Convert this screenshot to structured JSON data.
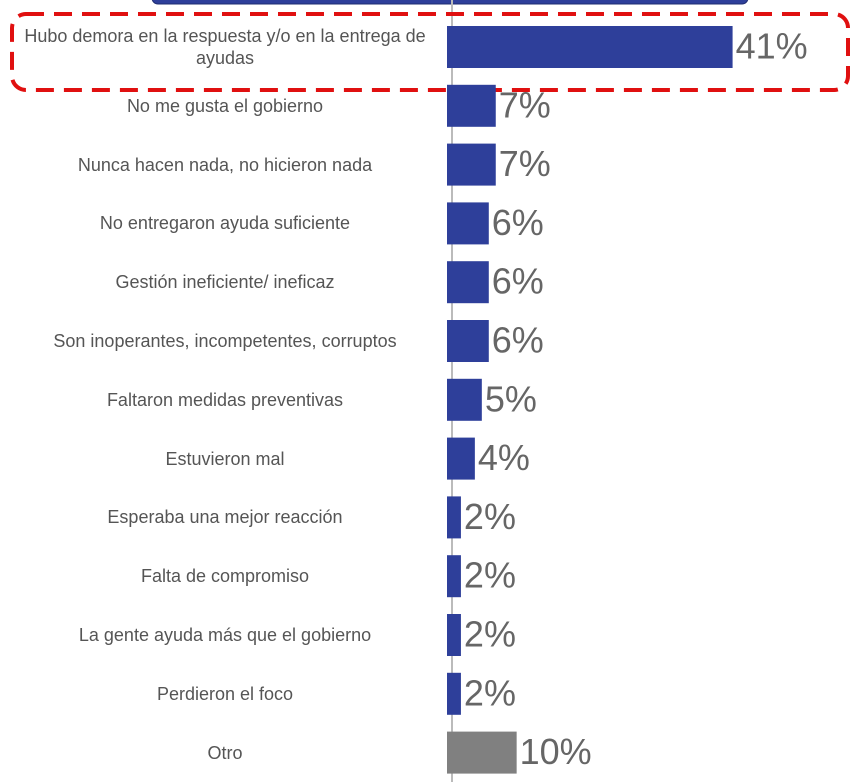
{
  "chart_data": {
    "type": "bar",
    "orientation": "horizontal",
    "categories": [
      "Hubo demora en la respuesta y/o en la entrega de ayudas",
      "No me gusta el gobierno",
      "Nunca hacen nada, no hicieron nada",
      "No entregaron ayuda suficiente",
      "Gestión ineficiente/ ineficaz",
      "Son inoperantes, incompetentes, corruptos",
      "Faltaron medidas preventivas",
      "Estuvieron mal",
      "Esperaba una mejor reacción",
      "Falta de compromiso",
      "La gente ayuda más que el gobierno",
      "Perdieron el foco",
      "Otro"
    ],
    "values": [
      41,
      7,
      7,
      6,
      6,
      6,
      5,
      4,
      2,
      2,
      2,
      2,
      10
    ],
    "value_labels": [
      "41%",
      "7%",
      "7%",
      "6%",
      "6%",
      "6%",
      "5%",
      "4%",
      "2%",
      "2%",
      "2%",
      "2%",
      "10%"
    ],
    "colors": [
      "#2e3f9a",
      "#2e3f9a",
      "#2e3f9a",
      "#2e3f9a",
      "#2e3f9a",
      "#2e3f9a",
      "#2e3f9a",
      "#2e3f9a",
      "#2e3f9a",
      "#2e3f9a",
      "#2e3f9a",
      "#2e3f9a",
      "#808080"
    ],
    "xlim": [
      0,
      58
    ]
  }
}
